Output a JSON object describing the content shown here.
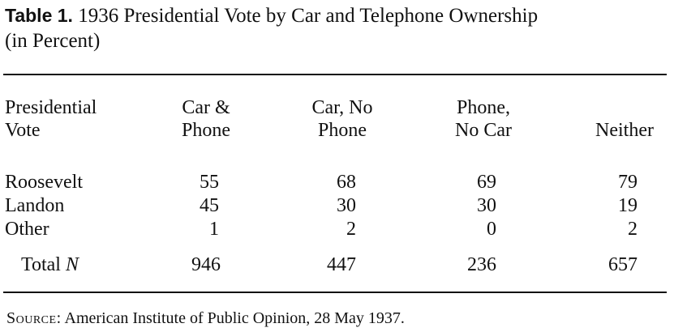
{
  "table": {
    "label": "Table 1.",
    "title_line1": "1936 Presidential Vote by Car and Telephone Ownership",
    "title_line2": "(in Percent)",
    "row_header": [
      "Presidential",
      "Vote"
    ],
    "columns": [
      {
        "line1": "Car &",
        "line2": "Phone"
      },
      {
        "line1": "Car, No",
        "line2": "Phone"
      },
      {
        "line1": "Phone,",
        "line2": "No Car"
      },
      {
        "line1": "",
        "line2": "Neither"
      }
    ],
    "rows": [
      {
        "label": "Roosevelt",
        "values": [
          "55",
          "68",
          "69",
          "79"
        ]
      },
      {
        "label": "Landon",
        "values": [
          "45",
          "30",
          "30",
          "19"
        ]
      },
      {
        "label": "Other",
        "values": [
          "1",
          "2",
          "0",
          "2"
        ]
      }
    ],
    "total": {
      "label": "Total",
      "label_n": "N",
      "values": [
        "946",
        "447",
        "236",
        "657"
      ]
    },
    "source_label": "Source:",
    "source_text": "American Institute of Public Opinion, 28 May 1937."
  }
}
